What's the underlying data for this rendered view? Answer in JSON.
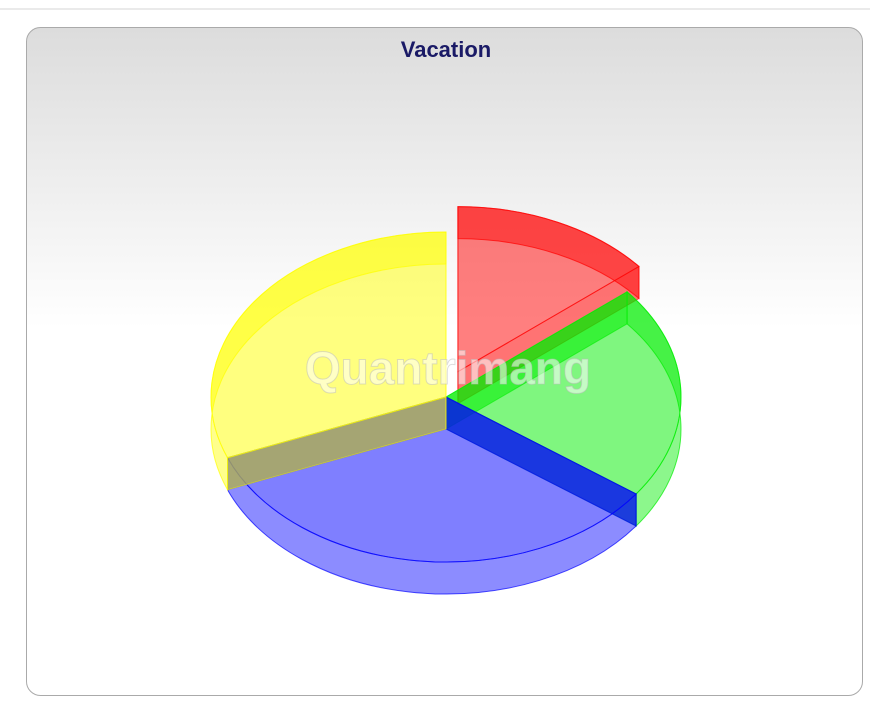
{
  "chart_data": {
    "type": "pie",
    "title": "Vacation",
    "values": [
      14,
      21,
      34,
      31
    ],
    "colors": [
      "#ff0000",
      "#00ee00",
      "#0000ff",
      "#ffff00"
    ],
    "explode": [
      true,
      false,
      false,
      false
    ],
    "watermark": "Quantrimang"
  }
}
